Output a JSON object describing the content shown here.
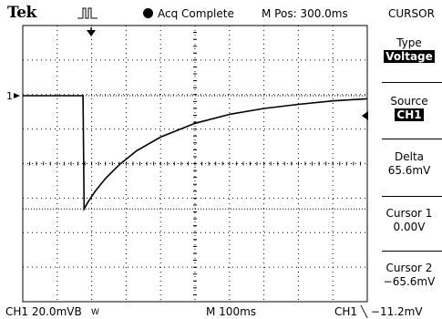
{
  "header": {
    "brand": "Tek",
    "status": "Acq Complete",
    "position": "M Pos: 300.0ms",
    "menu": "CURSOR"
  },
  "side_menu": {
    "type": {
      "label": "Type",
      "value": "Voltage"
    },
    "source": {
      "label": "Source",
      "value": "CH1"
    },
    "delta": {
      "label": "Delta",
      "value": "65.6mV"
    },
    "cursor1": {
      "label": "Cursor 1",
      "value": "0.00V"
    },
    "cursor2": {
      "label": "Cursor 2",
      "value": "−65.6mV"
    }
  },
  "footer": {
    "ch_scale": "CH1  20.0mVB",
    "bw_mark": "W",
    "timebase": "M 100ms",
    "trigger": "CH1 ╲ −11.2mV"
  },
  "marker_label": "1",
  "colors": {
    "trace": "#000000",
    "background": "#ffffff",
    "grid": "#000000"
  },
  "chart_data": {
    "type": "line",
    "divisions": {
      "x": 10,
      "y": 8
    },
    "volts_per_div_mV": 20.0,
    "time_per_div_ms": 100,
    "trace_mV": {
      "x_div": [
        0,
        1.55,
        1.75,
        1.78,
        1.9,
        2.1,
        2.4,
        2.8,
        3.3,
        4.0,
        5.0,
        6.0,
        7.0,
        8.0,
        9.0,
        10.0
      ],
      "y_mV": [
        0,
        0,
        0,
        -65.6,
        -61.4,
        -55.4,
        -48.0,
        -40.0,
        -32.0,
        -24.0,
        -16.0,
        -10.8,
        -7.4,
        -5.0,
        -3.0,
        -1.8
      ]
    },
    "cursor_levels_mV": [
      0.0,
      -65.6
    ]
  }
}
